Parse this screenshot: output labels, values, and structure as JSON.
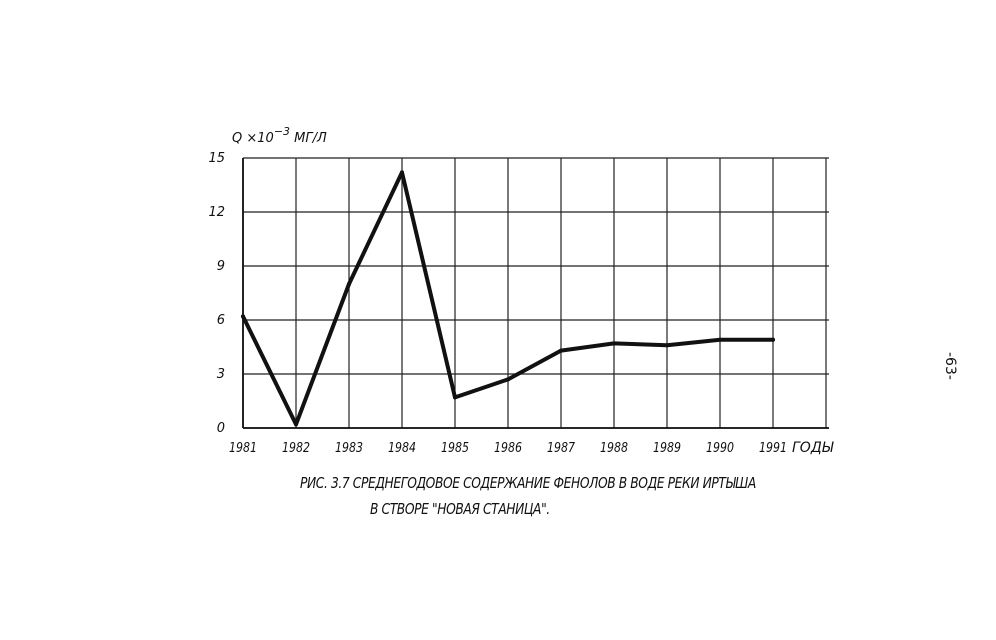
{
  "chart_data": {
    "type": "line",
    "y_unit_label": {
      "prefix": "Q ×10",
      "exponent": "−3",
      "suffix": " МГ/Л"
    },
    "x_axis_label": "ГОДЫ",
    "categories": [
      "1981",
      "1982",
      "1983",
      "1984",
      "1985",
      "1986",
      "1987",
      "1988",
      "1989",
      "1990",
      "1991"
    ],
    "series": [
      {
        "values": [
          6.2,
          0.2,
          8.0,
          14.2,
          1.7,
          2.7,
          4.3,
          4.7,
          4.6,
          4.9,
          4.9
        ]
      }
    ],
    "y_ticks": [
      "0",
      "3",
      "6",
      "9",
      "12",
      "15"
    ],
    "ylim": [
      0,
      15
    ],
    "grid": true,
    "line_color": "#111111"
  },
  "caption": {
    "line1": "РИС. 3.7 СРЕДНЕГОДОВОЕ СОДЕРЖАНИЕ ФЕНОЛОВ В ВОДЕ РЕКИ ИРТЫША",
    "line2": "В СТВОРЕ \"НОВАЯ СТАНИЦА\"."
  },
  "page_number": "-63-"
}
